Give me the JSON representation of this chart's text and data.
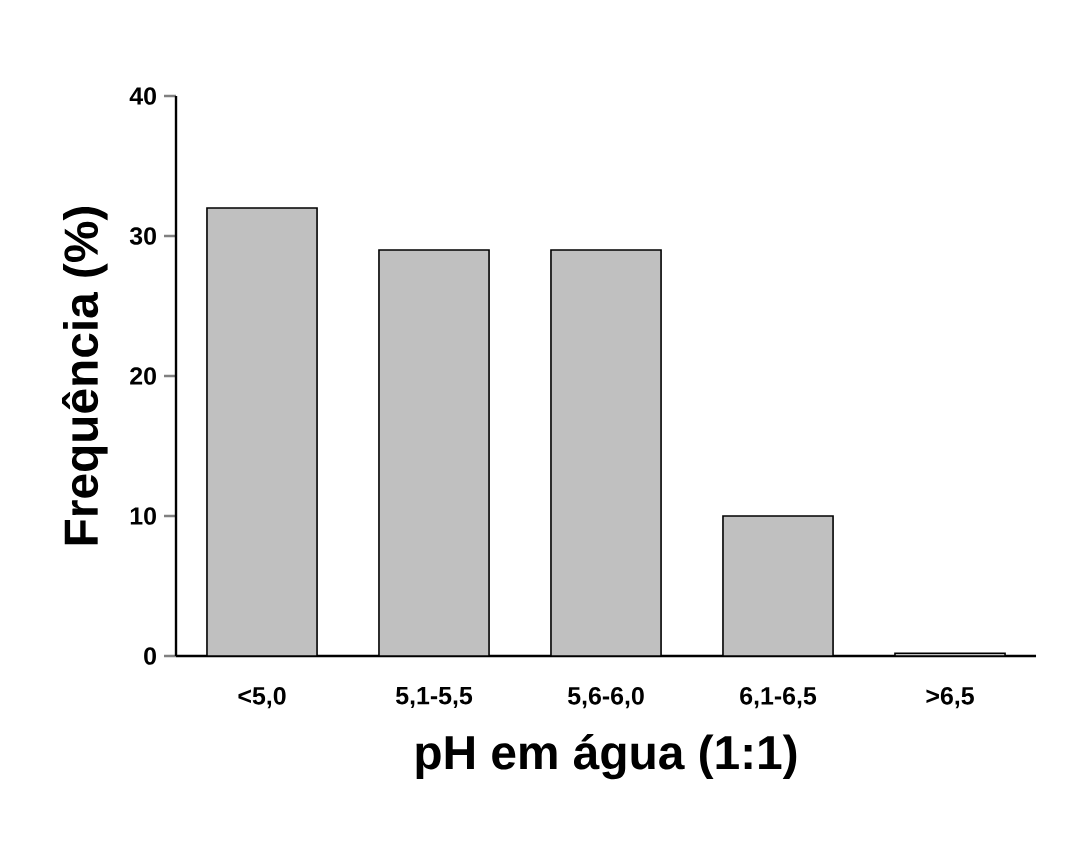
{
  "chart_data": {
    "type": "bar",
    "xlabel": "pH em água (1:1)",
    "ylabel": "Frequência (%)",
    "categories": [
      "<5,0",
      "5,1-5,5",
      "5,6-6,0",
      "6,1-6,5",
      ">6,5"
    ],
    "values": [
      32,
      29,
      29,
      10,
      0.2
    ],
    "color": "#c0c0c0",
    "ylim": [
      0,
      40
    ],
    "yticks": [
      0,
      10,
      20,
      30,
      40
    ],
    "grid": false
  }
}
